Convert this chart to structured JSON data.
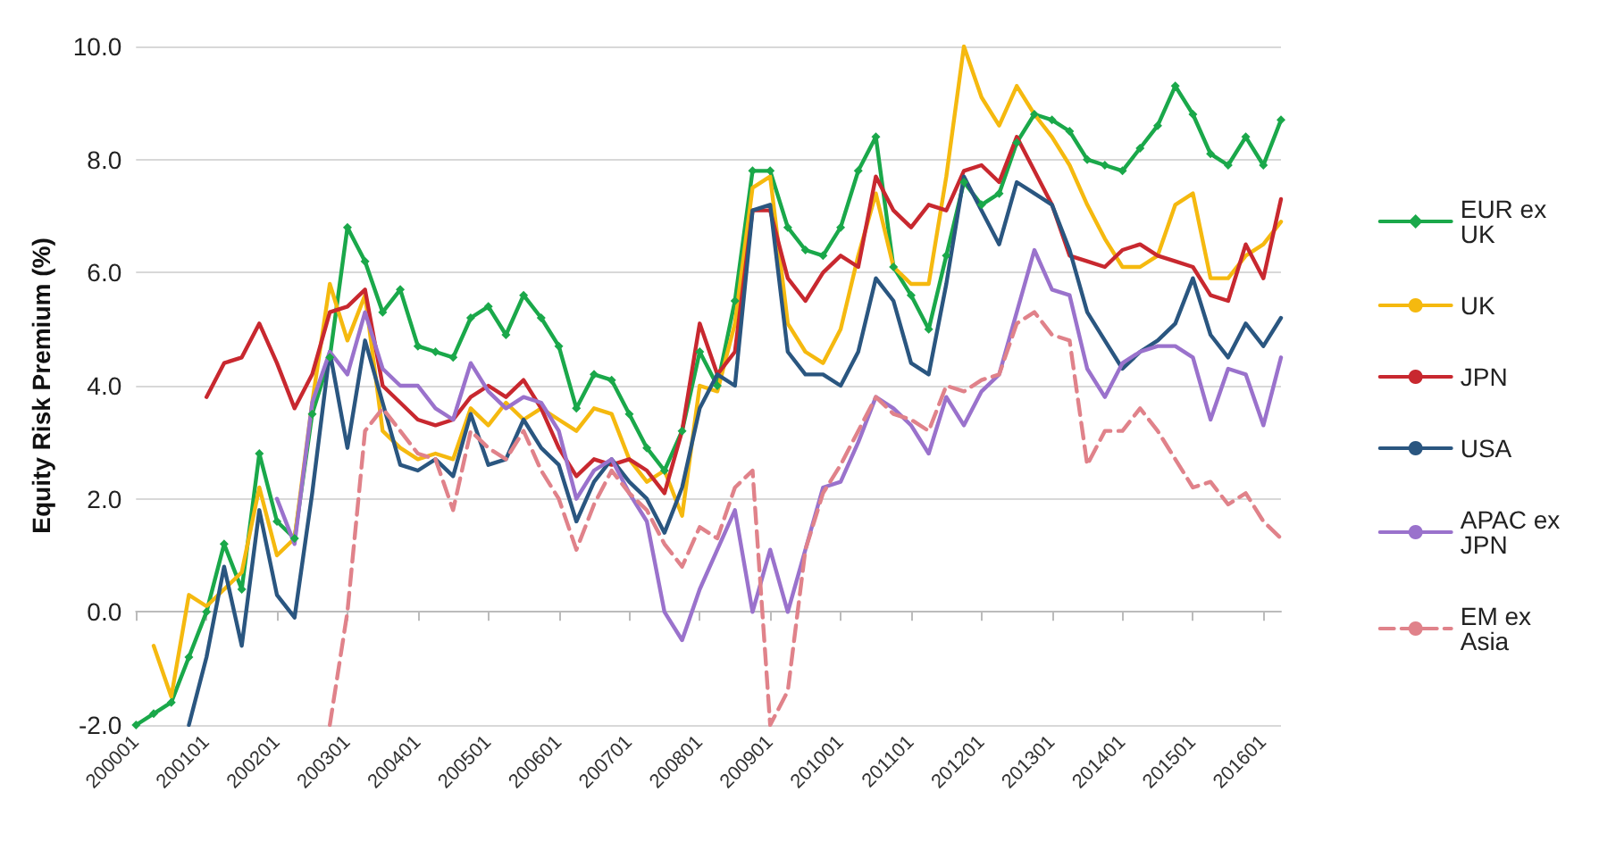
{
  "chart_data": {
    "type": "line",
    "ylabel": "Equity Risk Premium (%)",
    "categories": [
      "200001",
      null,
      null,
      null,
      "200101",
      null,
      null,
      null,
      "200201",
      null,
      null,
      null,
      "200301",
      null,
      null,
      null,
      "200401",
      null,
      null,
      null,
      "200501",
      null,
      null,
      null,
      "200601",
      null,
      null,
      null,
      "200701",
      null,
      null,
      null,
      "200801",
      null,
      null,
      null,
      "200901",
      null,
      null,
      null,
      "201001",
      null,
      null,
      null,
      "201101",
      null,
      null,
      null,
      "201201",
      null,
      null,
      null,
      "201301",
      null,
      null,
      null,
      "201401",
      null,
      null,
      null,
      "201501",
      null,
      null,
      null,
      "201601",
      null
    ],
    "ylim": [
      -2,
      10
    ],
    "yticks": [
      {
        "value": -2,
        "label": "-2.0"
      },
      {
        "value": 0,
        "label": "0.0"
      },
      {
        "value": 2,
        "label": "2.0"
      },
      {
        "value": 4,
        "label": "4.0"
      },
      {
        "value": 6,
        "label": "6.0"
      },
      {
        "value": 8,
        "label": "8.0"
      },
      {
        "value": 10,
        "label": "10.0"
      }
    ],
    "grid": "y",
    "legend": "right",
    "series": [
      {
        "name": "EUR ex UK",
        "color": "#1aa84a",
        "marker": "diamond",
        "values": [
          -2.0,
          -1.8,
          -1.6,
          -0.8,
          0.0,
          1.2,
          0.4,
          2.8,
          1.6,
          1.3,
          3.5,
          4.5,
          6.8,
          6.2,
          5.3,
          5.7,
          4.7,
          4.6,
          4.5,
          5.2,
          5.4,
          4.9,
          5.6,
          5.2,
          4.7,
          3.6,
          4.2,
          4.1,
          3.5,
          2.9,
          2.5,
          3.2,
          4.6,
          4.0,
          5.5,
          7.8,
          7.8,
          6.8,
          6.4,
          6.3,
          6.8,
          7.8,
          8.4,
          6.1,
          5.6,
          5.0,
          6.3,
          7.6,
          7.2,
          7.4,
          8.3,
          8.8,
          8.7,
          8.5,
          8.0,
          7.9,
          7.8,
          8.2,
          8.6,
          9.3,
          8.8,
          8.1,
          7.9,
          8.4,
          7.9,
          8.7
        ]
      },
      {
        "name": "UK",
        "color": "#f5b90f",
        "values": [
          null,
          -0.6,
          -1.5,
          0.3,
          0.1,
          0.4,
          0.7,
          2.2,
          1.0,
          1.3,
          3.7,
          5.8,
          4.8,
          5.6,
          3.2,
          2.9,
          2.7,
          2.8,
          2.7,
          3.6,
          3.3,
          3.7,
          3.4,
          3.6,
          3.4,
          3.2,
          3.6,
          3.5,
          2.7,
          2.3,
          2.5,
          1.7,
          4.0,
          3.9,
          5.1,
          7.5,
          7.7,
          5.1,
          4.6,
          4.4,
          5.0,
          6.3,
          7.4,
          6.1,
          5.8,
          5.8,
          7.7,
          10.0,
          9.1,
          8.6,
          9.3,
          8.8,
          8.4,
          7.9,
          7.2,
          6.6,
          6.1,
          6.1,
          6.3,
          7.2,
          7.4,
          5.9,
          5.9,
          6.3,
          6.5,
          6.9
        ]
      },
      {
        "name": "JPN",
        "color": "#c8282f",
        "values": [
          null,
          null,
          null,
          null,
          3.8,
          4.4,
          4.5,
          5.1,
          4.4,
          3.6,
          4.2,
          5.3,
          5.4,
          5.7,
          4.0,
          3.7,
          3.4,
          3.3,
          3.4,
          3.8,
          4.0,
          3.8,
          4.1,
          3.6,
          2.9,
          2.4,
          2.7,
          2.6,
          2.7,
          2.5,
          2.1,
          3.2,
          5.1,
          4.2,
          4.6,
          7.1,
          7.1,
          5.9,
          5.5,
          6.0,
          6.3,
          6.1,
          7.7,
          7.1,
          6.8,
          7.2,
          7.1,
          7.8,
          7.9,
          7.6,
          8.4,
          7.8,
          7.2,
          6.3,
          6.2,
          6.1,
          6.4,
          6.5,
          6.3,
          6.2,
          6.1,
          5.6,
          5.5,
          6.5,
          5.9,
          7.3
        ]
      },
      {
        "name": "USA",
        "color": "#2a5680",
        "values": [
          null,
          null,
          null,
          -2.0,
          -0.8,
          0.8,
          -0.6,
          1.8,
          0.3,
          -0.1,
          2.1,
          4.6,
          2.9,
          4.8,
          3.7,
          2.6,
          2.5,
          2.7,
          2.4,
          3.5,
          2.6,
          2.7,
          3.4,
          2.9,
          2.6,
          1.6,
          2.3,
          2.7,
          2.3,
          2.0,
          1.4,
          2.2,
          3.6,
          4.2,
          4.0,
          7.1,
          7.2,
          4.6,
          4.2,
          4.2,
          4.0,
          4.6,
          5.9,
          5.5,
          4.4,
          4.2,
          5.8,
          7.7,
          7.1,
          6.5,
          7.6,
          7.4,
          7.2,
          6.4,
          5.3,
          4.8,
          4.3,
          4.6,
          4.8,
          5.1,
          5.9,
          4.9,
          4.5,
          5.1,
          4.7,
          5.2
        ]
      },
      {
        "name": "APAC ex JPN",
        "color": "#9a72cc",
        "values": [
          null,
          null,
          null,
          null,
          null,
          null,
          null,
          null,
          2.0,
          1.2,
          3.7,
          4.6,
          4.2,
          5.3,
          4.3,
          4.0,
          4.0,
          3.6,
          3.4,
          4.4,
          3.9,
          3.6,
          3.8,
          3.7,
          3.2,
          2.0,
          2.5,
          2.7,
          2.1,
          1.6,
          0.0,
          -0.5,
          0.4,
          1.1,
          1.8,
          0.0,
          1.1,
          0.0,
          1.1,
          2.2,
          2.3,
          3.0,
          3.8,
          3.6,
          3.3,
          2.8,
          3.8,
          3.3,
          3.9,
          4.2,
          5.3,
          6.4,
          5.7,
          5.6,
          4.3,
          3.8,
          4.4,
          4.6,
          4.7,
          4.7,
          4.5,
          3.4,
          4.3,
          4.2,
          3.3,
          4.5
        ]
      },
      {
        "name": "EM ex Asia",
        "color": "#e0828a",
        "line_style": "dashed",
        "values": [
          null,
          null,
          null,
          null,
          null,
          null,
          null,
          null,
          null,
          null,
          null,
          -2.0,
          0.0,
          3.2,
          3.6,
          3.2,
          2.8,
          2.7,
          1.8,
          3.2,
          2.9,
          2.7,
          3.2,
          2.5,
          2.0,
          1.1,
          1.9,
          2.5,
          2.1,
          1.8,
          1.2,
          0.8,
          1.5,
          1.3,
          2.2,
          2.5,
          -2.0,
          -1.4,
          1.1,
          2.1,
          2.6,
          3.2,
          3.8,
          3.5,
          3.4,
          3.2,
          4.0,
          3.9,
          4.1,
          4.2,
          5.1,
          5.3,
          4.9,
          4.8,
          2.6,
          3.2,
          3.2,
          3.6,
          3.2,
          2.7,
          2.2,
          2.3,
          1.9,
          2.1,
          1.6,
          1.3
        ]
      }
    ]
  }
}
